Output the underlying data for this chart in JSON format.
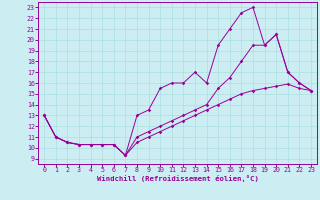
{
  "xlabel": "Windchill (Refroidissement éolien,°C)",
  "xlim": [
    -0.5,
    23.5
  ],
  "ylim": [
    8.5,
    23.5
  ],
  "xticks": [
    0,
    1,
    2,
    3,
    4,
    5,
    6,
    7,
    8,
    9,
    10,
    11,
    12,
    13,
    14,
    15,
    16,
    17,
    18,
    19,
    20,
    21,
    22,
    23
  ],
  "yticks": [
    9,
    10,
    11,
    12,
    13,
    14,
    15,
    16,
    17,
    18,
    19,
    20,
    21,
    22,
    23
  ],
  "bg_color": "#cceef2",
  "line_color": "#990099",
  "lines": [
    {
      "x": [
        0,
        1,
        2,
        3,
        4,
        5,
        6,
        7,
        8,
        9,
        10,
        11,
        12,
        13,
        14,
        15,
        16,
        17,
        18,
        19,
        20,
        21,
        22,
        23
      ],
      "y": [
        13,
        11,
        10.5,
        10.3,
        10.3,
        10.3,
        10.3,
        9.3,
        10.5,
        11,
        11.5,
        12,
        12.5,
        13,
        13.5,
        14,
        14.5,
        15,
        15.3,
        15.5,
        15.7,
        15.9,
        15.5,
        15.3
      ]
    },
    {
      "x": [
        0,
        1,
        2,
        3,
        4,
        5,
        6,
        7,
        8,
        9,
        10,
        11,
        12,
        13,
        14,
        15,
        16,
        17,
        18,
        19,
        20,
        21,
        22,
        23
      ],
      "y": [
        13,
        11,
        10.5,
        10.3,
        10.3,
        10.3,
        10.3,
        9.3,
        13,
        13.5,
        15.5,
        16,
        16,
        17,
        16,
        19.5,
        21,
        22.5,
        23,
        19.5,
        20.5,
        17,
        16,
        15.3
      ]
    },
    {
      "x": [
        0,
        1,
        2,
        3,
        4,
        5,
        6,
        7,
        8,
        9,
        10,
        11,
        12,
        13,
        14,
        15,
        16,
        17,
        18,
        19,
        20,
        21,
        22,
        23
      ],
      "y": [
        13,
        11,
        10.5,
        10.3,
        10.3,
        10.3,
        10.3,
        9.3,
        11,
        11.5,
        12,
        12.5,
        13,
        13.5,
        14,
        15.5,
        16.5,
        18,
        19.5,
        19.5,
        20.5,
        17,
        16,
        15.3
      ]
    }
  ]
}
